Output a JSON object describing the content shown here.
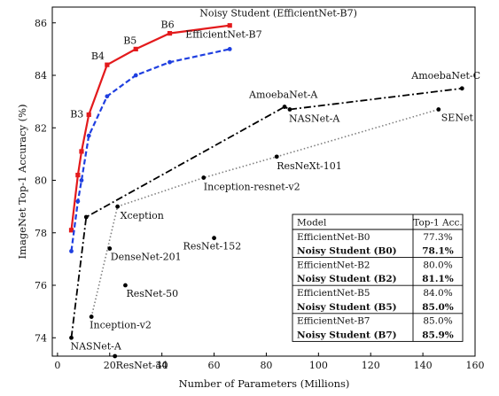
{
  "chart_data": {
    "type": "line",
    "title": "",
    "xlabel": "Number of Parameters (Millions)",
    "ylabel": "ImageNet Top-1 Accuracy (%)",
    "xlim": [
      -2,
      160
    ],
    "ylim": [
      73.3,
      86.6
    ],
    "xticks": [
      0,
      20,
      40,
      60,
      80,
      100,
      120,
      140,
      160
    ],
    "yticks": [
      74,
      76,
      78,
      80,
      82,
      84,
      86
    ],
    "grid": false,
    "series": [
      {
        "name": "Noisy Student (EfficientNet-B7)",
        "color": "#e31a1c",
        "marker": "square",
        "style": "solid",
        "points": [
          [
            5.3,
            78.1
          ],
          [
            7.8,
            80.2
          ],
          [
            9.2,
            81.1
          ],
          [
            12,
            82.5
          ],
          [
            19,
            84.4
          ],
          [
            30,
            85.0
          ],
          [
            43,
            85.6
          ],
          [
            66,
            85.9
          ]
        ],
        "labels": [
          {
            "index": 3,
            "text": "B3"
          },
          {
            "index": 4,
            "text": "B4"
          },
          {
            "index": 5,
            "text": "B5"
          },
          {
            "index": 6,
            "text": "B6"
          }
        ]
      },
      {
        "name": "EfficientNet-B7",
        "color": "#1f3fe0",
        "marker": "circle",
        "style": "dashed",
        "points": [
          [
            5.3,
            77.3
          ],
          [
            7.8,
            79.2
          ],
          [
            9.2,
            80.0
          ],
          [
            12,
            81.7
          ],
          [
            19,
            83.2
          ],
          [
            30,
            84.0
          ],
          [
            43,
            84.5
          ],
          [
            66,
            85.0
          ]
        ]
      },
      {
        "name": "AmoebaNet-C",
        "color": "#000000",
        "marker": "circle",
        "style": "dashdot",
        "points": [
          [
            5.3,
            74.0
          ],
          [
            11,
            78.6
          ],
          [
            87,
            82.8
          ],
          [
            89,
            82.7
          ],
          [
            155,
            83.5
          ]
        ],
        "labels": [
          {
            "index": 0,
            "text": "NASNet-A"
          },
          {
            "index": 2,
            "text": "AmoebaNet-A"
          },
          {
            "index": 3,
            "text": "NASNet-A"
          },
          {
            "index": 4,
            "text": "AmoebaNet-C"
          }
        ]
      },
      {
        "name": "SENet",
        "color": "#808080",
        "marker": "circle",
        "style": "dotted",
        "points": [
          [
            13,
            74.8
          ],
          [
            23,
            79.0
          ],
          [
            56,
            80.1
          ],
          [
            84,
            80.9
          ],
          [
            146,
            82.7
          ]
        ],
        "labels": [
          {
            "index": 0,
            "text": "Inception-v2"
          },
          {
            "index": 1,
            "text": "Xception"
          },
          {
            "index": 2,
            "text": "Inception-resnet-v2"
          },
          {
            "index": 3,
            "text": "ResNeXt-101"
          },
          {
            "index": 4,
            "text": "SENet"
          }
        ]
      }
    ],
    "scatter": [
      {
        "text": "DenseNet-201",
        "x": 20,
        "y": 77.4
      },
      {
        "text": "ResNet-152",
        "x": 60,
        "y": 77.8
      },
      {
        "text": "ResNet-50",
        "x": 26,
        "y": 76.0
      },
      {
        "text": "ResNet-34",
        "x": 22,
        "y": 73.3
      }
    ],
    "table": {
      "headers": [
        "Model",
        "Top-1 Acc."
      ],
      "rows": [
        {
          "model": "EfficientNet-B0",
          "acc": "77.3%",
          "bold": false
        },
        {
          "model": "Noisy Student (B0)",
          "acc": "78.1%",
          "bold": true
        },
        {
          "model": "EfficientNet-B2",
          "acc": "80.0%",
          "bold": false
        },
        {
          "model": "Noisy Student (B2)",
          "acc": "81.1%",
          "bold": true
        },
        {
          "model": "EfficientNet-B5",
          "acc": "84.0%",
          "bold": false
        },
        {
          "model": "Noisy Student (B5)",
          "acc": "85.0%",
          "bold": true
        },
        {
          "model": "EfficientNet-B7",
          "acc": "85.0%",
          "bold": false
        },
        {
          "model": "Noisy Student (B7)",
          "acc": "85.9%",
          "bold": true
        }
      ]
    }
  }
}
